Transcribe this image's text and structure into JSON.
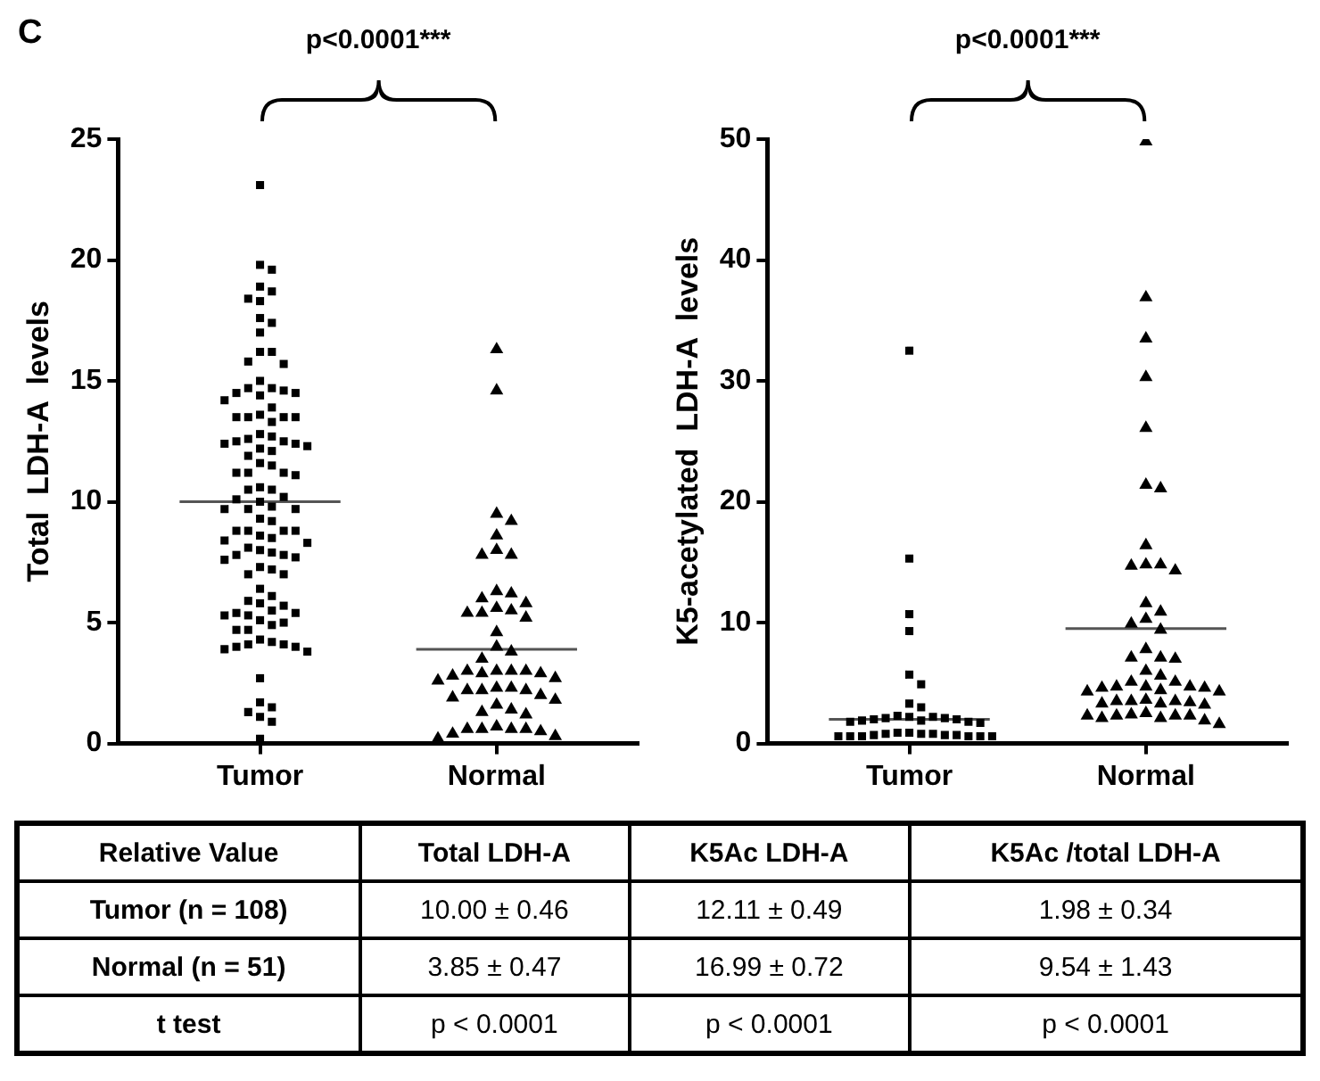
{
  "chart_data": [
    {
      "type": "scatter",
      "title": "C",
      "ylabel": "Total  LDH-A  levels",
      "categories": [
        "Tumor",
        "Normal"
      ],
      "ylim": [
        0,
        25
      ],
      "yticks": [
        0,
        5,
        10,
        15,
        20,
        25
      ],
      "annotations": [
        "p<0.0001***"
      ],
      "ref_lines": [
        {
          "axis": "y",
          "value": 10,
          "color": "#555555"
        },
        {
          "axis": "y",
          "value": 3.9,
          "color": "#555555"
        }
      ],
      "series": [
        {
          "marker": "square",
          "color": "#000000",
          "x": [
            "Tumor",
            "Tumor",
            "Tumor",
            "Tumor",
            "Tumor",
            "Tumor",
            "Tumor",
            "Tumor",
            "Tumor",
            "Tumor",
            "Tumor",
            "Tumor",
            "Tumor",
            "Tumor",
            "Tumor",
            "Tumor",
            "Tumor",
            "Tumor",
            "Tumor",
            "Tumor",
            "Tumor",
            "Tumor",
            "Tumor",
            "Tumor",
            "Tumor",
            "Tumor",
            "Tumor",
            "Tumor",
            "Tumor",
            "Tumor",
            "Tumor",
            "Tumor",
            "Tumor",
            "Tumor",
            "Tumor",
            "Tumor",
            "Tumor",
            "Tumor",
            "Tumor",
            "Tumor",
            "Tumor",
            "Tumor",
            "Tumor",
            "Tumor",
            "Tumor",
            "Tumor",
            "Tumor",
            "Tumor",
            "Tumor",
            "Tumor",
            "Tumor",
            "Tumor",
            "Tumor",
            "Tumor",
            "Tumor",
            "Tumor",
            "Tumor",
            "Tumor",
            "Tumor",
            "Tumor",
            "Tumor",
            "Tumor",
            "Tumor",
            "Tumor",
            "Tumor",
            "Tumor",
            "Tumor",
            "Tumor",
            "Tumor",
            "Tumor",
            "Tumor",
            "Tumor",
            "Tumor",
            "Tumor",
            "Tumor",
            "Tumor",
            "Tumor",
            "Tumor",
            "Tumor",
            "Tumor",
            "Tumor",
            "Tumor",
            "Tumor",
            "Tumor",
            "Tumor",
            "Tumor",
            "Tumor",
            "Tumor",
            "Tumor",
            "Tumor",
            "Tumor",
            "Tumor",
            "Tumor",
            "Tumor",
            "Tumor",
            "Tumor",
            "Tumor",
            "Tumor",
            "Tumor",
            "Tumor",
            "Tumor",
            "Tumor",
            "Tumor",
            "Tumor",
            "Tumor",
            "Tumor",
            "Tumor"
          ],
          "values": [
            23.1,
            19.8,
            19.6,
            18.7,
            18.3,
            18.4,
            18.9,
            17.6,
            17.4,
            17.0,
            16.2,
            15.7,
            15.8,
            16.2,
            15.0,
            14.7,
            14.5,
            14.5,
            14.4,
            14.6,
            14.7,
            14.2,
            13.9,
            13.5,
            13.5,
            13.6,
            13.3,
            13.5,
            13.5,
            12.8,
            12.7,
            12.5,
            12.6,
            12.5,
            12.4,
            12.3,
            12.1,
            12.4,
            12.2,
            11.9,
            11.6,
            11.2,
            11.1,
            11.2,
            11.2,
            11.5,
            10.6,
            10.5,
            10.5,
            10.2,
            10.1,
            10.0,
            9.7,
            9.7,
            9.7,
            9.8,
            9.2,
            9.3,
            8.8,
            8.8,
            8.8,
            8.8,
            8.6,
            8.5,
            8.4,
            8.3,
            8.1,
            8.0,
            7.8,
            7.8,
            7.9,
            7.7,
            7.6,
            7.3,
            7.2,
            7.0,
            7.0,
            6.4,
            6.1,
            5.9,
            5.8,
            5.7,
            5.5,
            5.4,
            5.3,
            5.4,
            5.0,
            5.1,
            4.9,
            4.7,
            4.7,
            5.3,
            4.2,
            4.1,
            4.0,
            3.9,
            3.8,
            4.0,
            4.1,
            4.3,
            2.7,
            1.5,
            1.3,
            1.1,
            1.7,
            0.9,
            0.2
          ]
        },
        {
          "marker": "triangle",
          "color": "#000000",
          "x": [
            "Normal",
            "Normal",
            "Normal",
            "Normal",
            "Normal",
            "Normal",
            "Normal",
            "Normal",
            "Normal",
            "Normal",
            "Normal",
            "Normal",
            "Normal",
            "Normal",
            "Normal",
            "Normal",
            "Normal",
            "Normal",
            "Normal",
            "Normal",
            "Normal",
            "Normal",
            "Normal",
            "Normal",
            "Normal",
            "Normal",
            "Normal",
            "Normal",
            "Normal",
            "Normal",
            "Normal",
            "Normal",
            "Normal",
            "Normal",
            "Normal",
            "Normal",
            "Normal",
            "Normal",
            "Normal",
            "Normal",
            "Normal",
            "Normal",
            "Normal",
            "Normal",
            "Normal",
            "Normal",
            "Normal",
            "Normal",
            "Normal",
            "Normal",
            "Normal"
          ],
          "values": [
            16.3,
            14.6,
            9.5,
            9.2,
            8.6,
            7.8,
            7.8,
            8.0,
            6.3,
            6.0,
            6.2,
            5.8,
            5.6,
            5.5,
            5.4,
            5.4,
            5.2,
            4.6,
            3.8,
            4.0,
            3.5,
            3.0,
            3.0,
            3.0,
            2.9,
            2.9,
            3.0,
            2.7,
            2.8,
            2.6,
            2.3,
            2.2,
            2.2,
            2.3,
            2.2,
            2.0,
            1.9,
            1.3,
            1.4,
            1.2,
            1.6,
            1.8,
            0.6,
            0.6,
            0.6,
            0.5,
            0.6,
            0.7,
            0.4,
            0.3,
            0.2
          ]
        }
      ]
    },
    {
      "type": "scatter",
      "ylabel": "K5-acetylated  LDH-A  levels",
      "categories": [
        "Tumor",
        "Normal"
      ],
      "ylim": [
        0,
        50
      ],
      "yticks": [
        0,
        10,
        20,
        30,
        40,
        50
      ],
      "annotations": [
        "p<0.0001***"
      ],
      "ref_lines": [
        {
          "axis": "y",
          "value": 2,
          "color": "#555555"
        },
        {
          "axis": "y",
          "value": 9.5,
          "color": "#555555"
        }
      ],
      "series": [
        {
          "marker": "square",
          "color": "#000000",
          "x": [
            "Tumor",
            "Tumor",
            "Tumor",
            "Tumor",
            "Tumor",
            "Tumor",
            "Tumor",
            "Tumor",
            "Tumor",
            "Tumor",
            "Tumor",
            "Tumor",
            "Tumor",
            "Tumor",
            "Tumor",
            "Tumor",
            "Tumor",
            "Tumor",
            "Tumor",
            "Tumor",
            "Tumor",
            "Tumor",
            "Tumor",
            "Tumor",
            "Tumor",
            "Tumor",
            "Tumor",
            "Tumor",
            "Tumor",
            "Tumor",
            "Tumor",
            "Tumor",
            "Tumor",
            "Tumor"
          ],
          "values": [
            32.5,
            15.3,
            10.7,
            9.3,
            5.7,
            4.9,
            3.3,
            3.0,
            2.3,
            2.2,
            2.2,
            2.1,
            2.1,
            2.0,
            2.0,
            1.9,
            1.9,
            1.8,
            1.8,
            1.7,
            0.9,
            0.9,
            0.8,
            0.8,
            0.8,
            0.7,
            0.7,
            0.7,
            0.6,
            0.6,
            0.6,
            0.6,
            0.6,
            0.6
          ]
        },
        {
          "marker": "triangle",
          "color": "#000000",
          "x": [
            "Normal",
            "Normal",
            "Normal",
            "Normal",
            "Normal",
            "Normal",
            "Normal",
            "Normal",
            "Normal",
            "Normal",
            "Normal",
            "Normal",
            "Normal",
            "Normal",
            "Normal",
            "Normal",
            "Normal",
            "Normal",
            "Normal",
            "Normal",
            "Normal",
            "Normal",
            "Normal",
            "Normal",
            "Normal",
            "Normal",
            "Normal",
            "Normal",
            "Normal",
            "Normal",
            "Normal",
            "Normal",
            "Normal",
            "Normal",
            "Normal",
            "Normal",
            "Normal",
            "Normal",
            "Normal",
            "Normal",
            "Normal",
            "Normal",
            "Normal",
            "Normal",
            "Normal",
            "Normal",
            "Normal",
            "Normal",
            "Normal",
            "Normal",
            "Normal"
          ],
          "values": [
            49.8,
            36.9,
            33.5,
            30.3,
            26.1,
            21.1,
            21.4,
            16.4,
            14.8,
            14.3,
            14.7,
            14.8,
            11.6,
            10.9,
            10.3,
            9.9,
            9.4,
            7.8,
            7.1,
            7.1,
            7.0,
            6.0,
            5.6,
            5.1,
            4.7,
            4.7,
            4.6,
            4.4,
            4.3,
            4.6,
            4.3,
            4.7,
            5.1,
            3.5,
            3.4,
            3.5,
            3.3,
            3.2,
            3.3,
            3.5,
            3.6,
            2.5,
            2.4,
            2.3,
            2.1,
            1.9,
            2.3,
            2.1,
            2.3,
            1.6,
            2.3
          ]
        }
      ]
    },
    {
      "type": "other",
      "ylabel": "Relative Value",
      "categories": [
        "Total LDH-A",
        "K5Ac LDH-A",
        "K5Ac /total LDH-A"
      ],
      "y_categories": [
        "Tumor (n = 108)",
        "Normal (n = 51)",
        "t test"
      ],
      "cell_labels": [
        [
          "10.00 ± 0.46",
          "12.11 ± 0.49",
          "1.98 ± 0.34"
        ],
        [
          "3.85 ± 0.47",
          "16.99 ± 0.72",
          "9.54 ± 1.43"
        ],
        [
          "p < 0.0001",
          "p < 0.0001",
          "p < 0.0001"
        ]
      ]
    }
  ]
}
